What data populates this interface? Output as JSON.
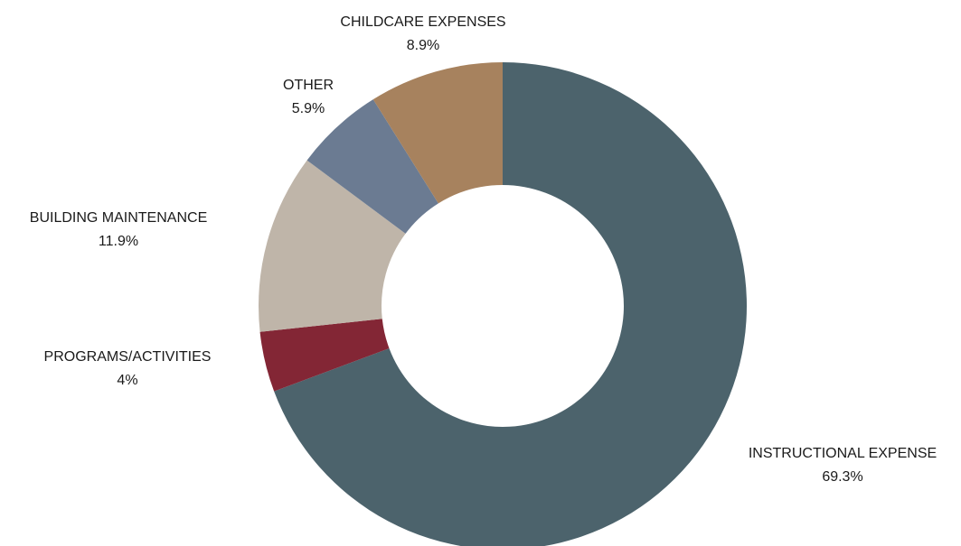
{
  "chart_data": {
    "type": "pie",
    "donut": true,
    "title": "",
    "slices": [
      {
        "label": "INSTRUCTIONAL EXPENSE",
        "value": 69.3,
        "value_label": "69.3%",
        "color": "#4c636c"
      },
      {
        "label": "PROGRAMS/ACTIVITIES",
        "value": 4.0,
        "value_label": "4%",
        "color": "#832635"
      },
      {
        "label": "BUILDING MAINTENANCE",
        "value": 11.9,
        "value_label": "11.9%",
        "color": "#bfb5a9"
      },
      {
        "label": "OTHER",
        "value": 5.9,
        "value_label": "5.9%",
        "color": "#6b7b92"
      },
      {
        "label": "CHILDCARE EXPENSES",
        "value": 8.9,
        "value_label": "8.9%",
        "color": "#a7825e"
      }
    ],
    "start_angle": "12 o'clock",
    "direction": "clockwise",
    "legend": "none"
  }
}
